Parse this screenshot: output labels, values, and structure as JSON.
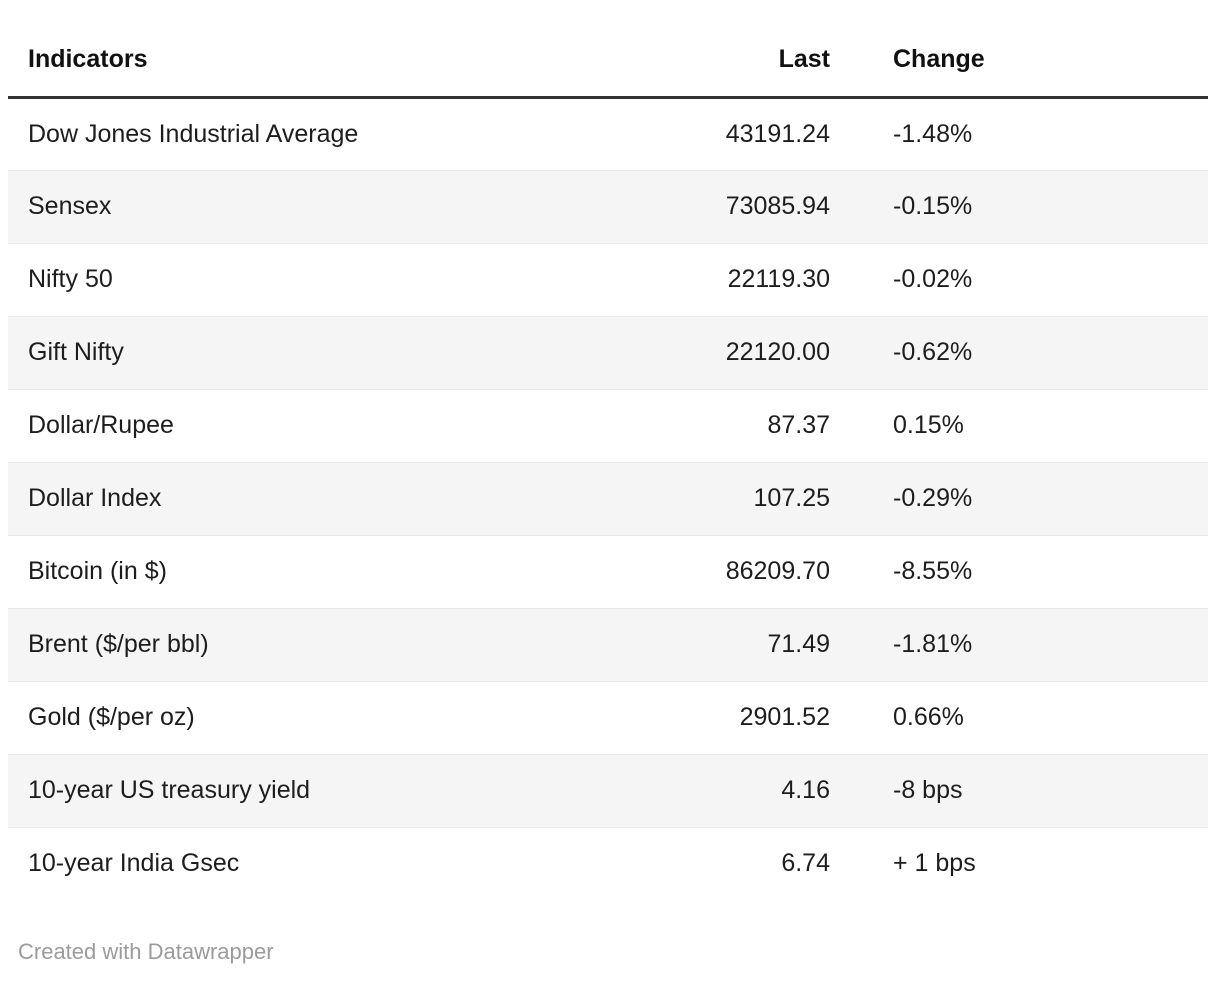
{
  "chart_data": {
    "type": "table",
    "columns": [
      "Indicators",
      "Last",
      "Change"
    ],
    "rows": [
      [
        "Dow Jones Industrial Average",
        "43191.24",
        "-1.48%"
      ],
      [
        "Sensex",
        "73085.94",
        "-0.15%"
      ],
      [
        "Nifty 50",
        "22119.30",
        "-0.02%"
      ],
      [
        "Gift Nifty",
        "22120.00",
        "-0.62%"
      ],
      [
        "Dollar/Rupee",
        "87.37",
        "0.15%"
      ],
      [
        "Dollar Index",
        "107.25",
        "-0.29%"
      ],
      [
        "Bitcoin (in $)",
        "86209.70",
        "-8.55%"
      ],
      [
        "Brent ($/per bbl)",
        "71.49",
        "-1.81%"
      ],
      [
        "Gold ($/per oz)",
        "2901.52",
        "0.66%"
      ],
      [
        "10-year US treasury yield",
        "4.16",
        "-8 bps"
      ],
      [
        "10-year India Gsec",
        "6.74",
        "+ 1 bps"
      ]
    ],
    "title": "",
    "layout": {
      "striped_rows": true,
      "stripe_color": "#f5f5f5",
      "header_rule_color": "#333333",
      "row_divider_color": "#e9e9e9"
    }
  },
  "footer": {
    "attribution": "Created with Datawrapper"
  },
  "colors": {
    "body_text": "#1d1d1d",
    "header_text": "#111111",
    "footer_text": "#9b9b9b",
    "stripe": "#f5f5f5"
  }
}
